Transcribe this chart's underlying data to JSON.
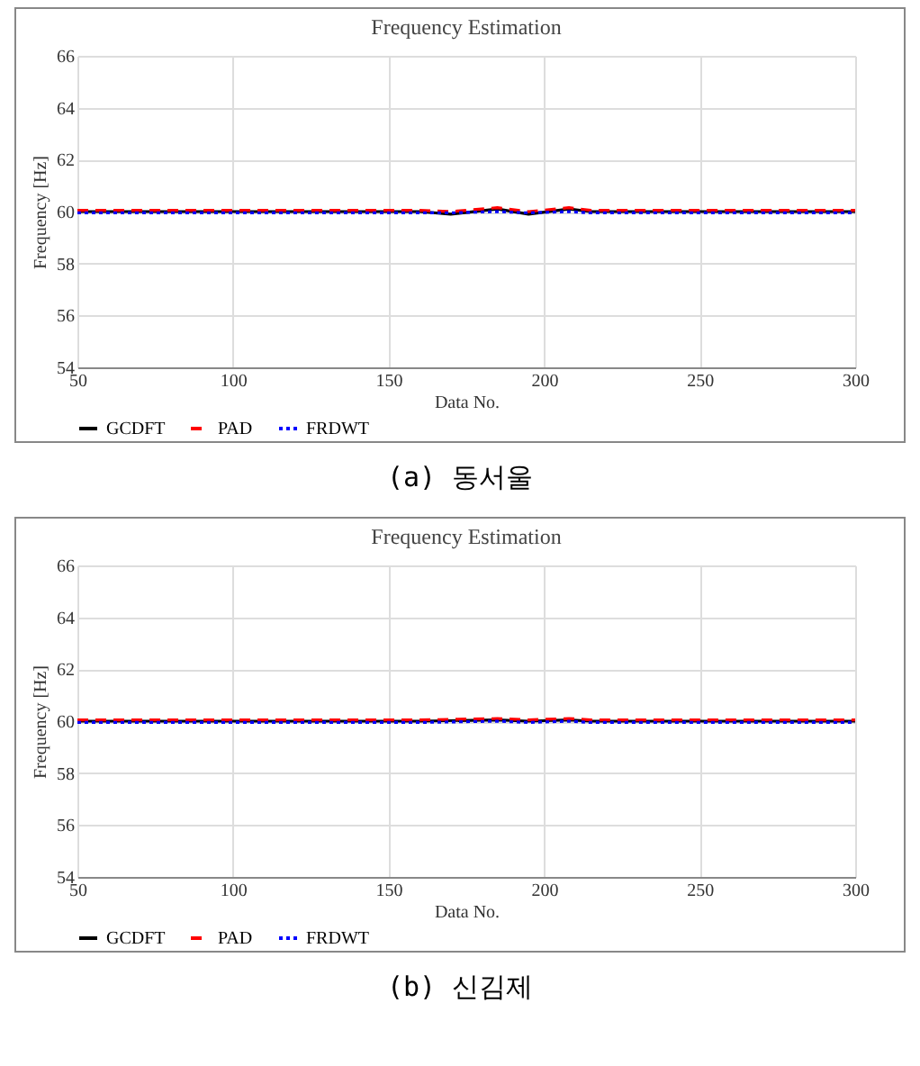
{
  "chart_data": [
    {
      "type": "line",
      "title": "Frequency Estimation",
      "xlabel": "Data No.",
      "ylabel": "Frequency [Hz]",
      "annotations": [
        "(a) 동서울"
      ],
      "x": [
        50,
        160,
        170,
        185,
        195,
        208,
        215,
        300
      ],
      "xlim": [
        50,
        300
      ],
      "xticks": [
        50,
        100,
        150,
        200,
        250,
        300
      ],
      "ylim": [
        54,
        66
      ],
      "yticks": [
        54,
        56,
        58,
        60,
        62,
        64,
        66
      ],
      "grid": true,
      "legend": "bottom",
      "marker": "none",
      "series": [
        {
          "name": "GCDFT",
          "color": "#000000",
          "line_style": "solid",
          "values": [
            60,
            60,
            59.9,
            60.1,
            59.9,
            60.1,
            60,
            60
          ]
        },
        {
          "name": "PAD",
          "color": "#ff0000",
          "line_style": "dashed",
          "values": [
            60.05,
            60.05,
            60,
            60.15,
            60,
            60.15,
            60.05,
            60.05
          ]
        },
        {
          "name": "FRDWT",
          "color": "#0000ff",
          "line_style": "dotted",
          "values": [
            59.95,
            59.95,
            59.95,
            60,
            59.95,
            60,
            59.95,
            59.95
          ]
        }
      ]
    },
    {
      "type": "line",
      "title": "Frequency Estimation",
      "xlabel": "Data No.",
      "ylabel": "Frequency [Hz]",
      "annotations": [
        "(b) 신김제"
      ],
      "x": [
        50,
        160,
        185,
        195,
        208,
        215,
        300
      ],
      "xlim": [
        50,
        300
      ],
      "xticks": [
        50,
        100,
        150,
        200,
        250,
        300
      ],
      "ylim": [
        54,
        66
      ],
      "yticks": [
        54,
        56,
        58,
        60,
        62,
        64,
        66
      ],
      "grid": true,
      "legend": "bottom",
      "marker": "none",
      "series": [
        {
          "name": "GCDFT",
          "color": "#000000",
          "line_style": "solid",
          "values": [
            60,
            60,
            60.05,
            60,
            60.05,
            60,
            60
          ]
        },
        {
          "name": "PAD",
          "color": "#ff0000",
          "line_style": "dashed",
          "values": [
            60.05,
            60.05,
            60.1,
            60.05,
            60.1,
            60.05,
            60.05
          ]
        },
        {
          "name": "FRDWT",
          "color": "#0000ff",
          "line_style": "dotted",
          "values": [
            59.95,
            59.95,
            60,
            59.95,
            60,
            59.95,
            59.95
          ]
        }
      ]
    }
  ]
}
